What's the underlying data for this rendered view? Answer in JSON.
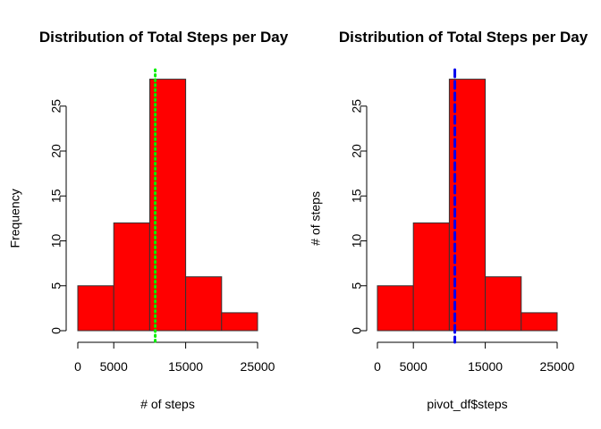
{
  "chart_data": [
    {
      "type": "bar",
      "title": "Distribution of Total Steps per Day",
      "xlabel": "# of steps",
      "ylabel": "Frequency",
      "bins": [
        [
          0,
          5000
        ],
        [
          5000,
          10000
        ],
        [
          10000,
          15000
        ],
        [
          15000,
          20000
        ],
        [
          20000,
          25000
        ]
      ],
      "values": [
        5,
        12,
        28,
        6,
        2
      ],
      "xlim": [
        0,
        25000
      ],
      "ylim": [
        0,
        28
      ],
      "x_ticks": [
        0,
        5000,
        15000,
        25000
      ],
      "x_tick_labels": [
        "0",
        "5000",
        "15000",
        "25000"
      ],
      "y_ticks": [
        0,
        5,
        10,
        15,
        20,
        25
      ],
      "y_tick_labels": [
        "0",
        "5",
        "10",
        "15",
        "20",
        "25"
      ],
      "bar_color": "#ff0000",
      "line": {
        "x": 10766,
        "color": "#00ee00",
        "style": "dotted"
      }
    },
    {
      "type": "bar",
      "title": "Distribution of Total Steps per Day",
      "xlabel": "pivot_df$steps",
      "ylabel": "# of steps",
      "bins": [
        [
          0,
          5000
        ],
        [
          5000,
          10000
        ],
        [
          10000,
          15000
        ],
        [
          15000,
          20000
        ],
        [
          20000,
          25000
        ]
      ],
      "values": [
        5,
        12,
        28,
        6,
        2
      ],
      "xlim": [
        0,
        25000
      ],
      "ylim": [
        0,
        28
      ],
      "x_ticks": [
        0,
        5000,
        15000,
        25000
      ],
      "x_tick_labels": [
        "0",
        "5000",
        "15000",
        "25000"
      ],
      "y_ticks": [
        0,
        5,
        10,
        15,
        20,
        25
      ],
      "y_tick_labels": [
        "0",
        "5",
        "10",
        "15",
        "20",
        "25"
      ],
      "bar_color": "#ff0000",
      "line": {
        "x": 10766,
        "color": "#0000ee",
        "style": "dashed"
      }
    }
  ]
}
